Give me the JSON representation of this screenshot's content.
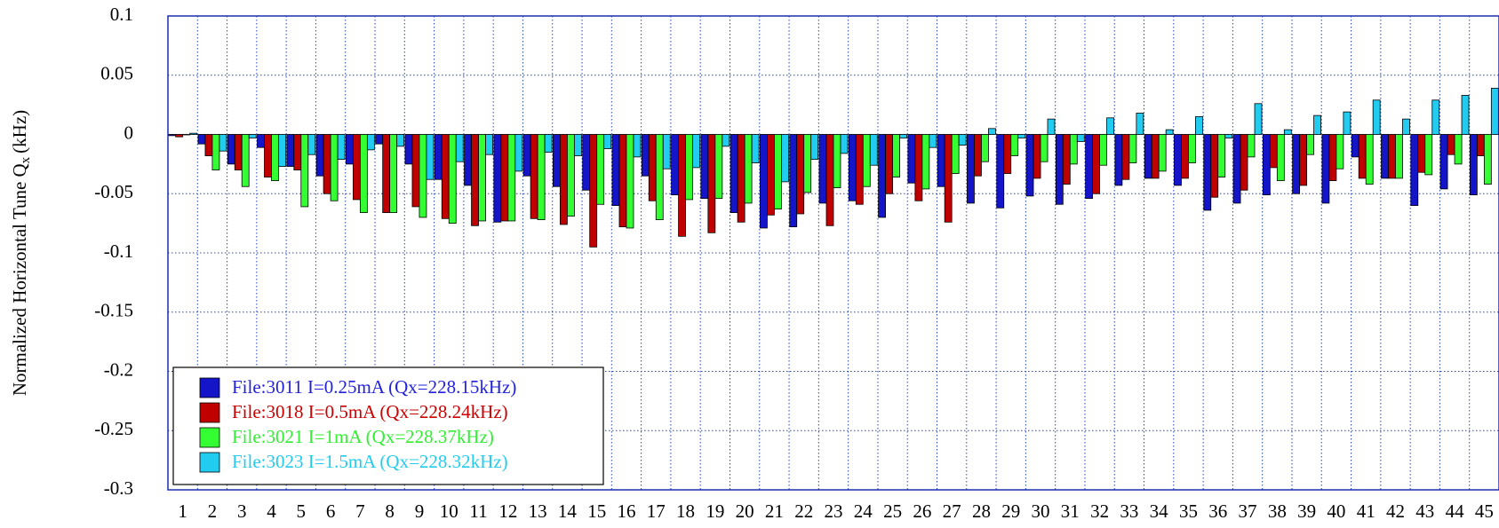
{
  "chart_data": {
    "type": "bar",
    "y_label": "Normalized Horizontal Tune Q",
    "y_label_sub": "x",
    "y_label_unit": "(kHz)",
    "categories": [
      1,
      2,
      3,
      4,
      5,
      6,
      7,
      8,
      9,
      10,
      11,
      12,
      13,
      14,
      15,
      16,
      17,
      18,
      19,
      20,
      21,
      22,
      23,
      24,
      25,
      26,
      27,
      28,
      29,
      30,
      31,
      32,
      33,
      34,
      35,
      36,
      37,
      38,
      39,
      40,
      41,
      42,
      43,
      44,
      45
    ],
    "series": [
      {
        "name": "File:3011 I=0.25mA (Qx=228.15kHz)",
        "color": "#1414c8",
        "text_color": "#2222dd",
        "values": [
          -0.001,
          -0.008,
          -0.025,
          -0.011,
          -0.027,
          -0.035,
          -0.025,
          -0.008,
          -0.025,
          -0.038,
          -0.043,
          -0.074,
          -0.035,
          -0.044,
          -0.047,
          -0.06,
          -0.035,
          -0.051,
          -0.054,
          -0.066,
          -0.079,
          -0.078,
          -0.058,
          -0.056,
          -0.07,
          -0.041,
          -0.044,
          -0.058,
          -0.062,
          -0.052,
          -0.059,
          -0.054,
          -0.043,
          -0.037,
          -0.043,
          -0.064,
          -0.058,
          -0.051,
          -0.05,
          -0.058,
          -0.019,
          -0.037,
          -0.06,
          -0.046,
          -0.051
        ]
      },
      {
        "name": "File:3018 I=0.5mA (Qx=228.24kHz)",
        "color": "#c00000",
        "text_color": "#cc0000",
        "values": [
          -0.002,
          -0.018,
          -0.03,
          -0.036,
          -0.03,
          -0.05,
          -0.055,
          -0.066,
          -0.061,
          -0.071,
          -0.077,
          -0.073,
          -0.071,
          -0.076,
          -0.095,
          -0.078,
          -0.056,
          -0.086,
          -0.083,
          -0.074,
          -0.068,
          -0.067,
          -0.077,
          -0.059,
          -0.05,
          -0.056,
          -0.074,
          -0.035,
          -0.033,
          -0.037,
          -0.042,
          -0.05,
          -0.038,
          -0.037,
          -0.037,
          -0.053,
          -0.047,
          -0.028,
          -0.043,
          -0.039,
          -0.037,
          -0.037,
          -0.032,
          -0.017,
          -0.018
        ]
      },
      {
        "name": "File:3021 I=1mA (Qx=228.37kHz)",
        "color": "#33ff33",
        "text_color": "#33ee33",
        "values": [
          0,
          -0.03,
          -0.044,
          -0.039,
          -0.061,
          -0.056,
          -0.066,
          -0.066,
          -0.07,
          -0.075,
          -0.073,
          -0.073,
          -0.072,
          -0.069,
          -0.059,
          -0.079,
          -0.072,
          -0.055,
          -0.054,
          -0.058,
          -0.063,
          -0.049,
          -0.045,
          -0.044,
          -0.036,
          -0.046,
          -0.033,
          -0.023,
          -0.018,
          -0.023,
          -0.025,
          -0.026,
          -0.024,
          -0.031,
          -0.024,
          -0.036,
          -0.019,
          -0.039,
          -0.017,
          -0.029,
          -0.042,
          -0.037,
          -0.034,
          -0.025,
          -0.042
        ]
      },
      {
        "name": "File:3023 I=1.5mA (Qx=228.32kHz)",
        "color": "#22ccf0",
        "text_color": "#22ccee",
        "values": [
          0.001,
          -0.014,
          -0.003,
          -0.027,
          -0.017,
          -0.021,
          -0.013,
          -0.01,
          -0.038,
          -0.023,
          -0.017,
          -0.031,
          -0.015,
          -0.018,
          -0.012,
          -0.019,
          -0.029,
          -0.028,
          -0.01,
          -0.024,
          -0.04,
          -0.021,
          -0.016,
          -0.026,
          -0.003,
          -0.011,
          -0.009,
          0.005,
          -0.003,
          0.013,
          -0.006,
          0.014,
          0.018,
          0.004,
          0.015,
          -0.003,
          0.026,
          0.004,
          0.016,
          0.019,
          0.029,
          0.013,
          0.029,
          0.033,
          0.039
        ]
      }
    ],
    "ylim": [
      -0.3,
      0.1
    ],
    "yticks": [
      -0.3,
      -0.25,
      -0.2,
      -0.15,
      -0.1,
      -0.05,
      0,
      0.05,
      0.1
    ],
    "grid": true,
    "legend": "lower left"
  }
}
